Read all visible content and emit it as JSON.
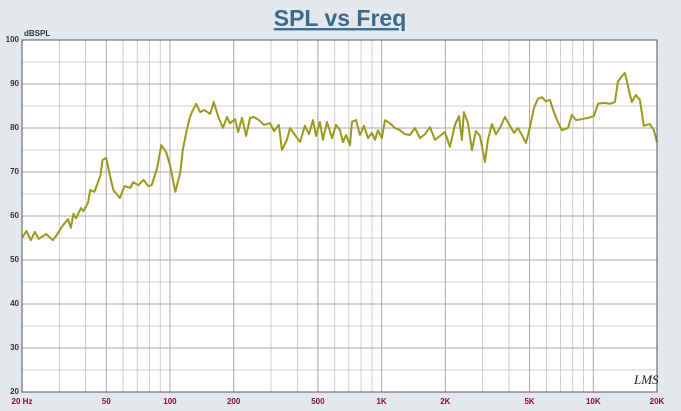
{
  "chart_data": {
    "type": "line",
    "title": "SPL vs Freq",
    "ylabel": "dBSPL",
    "watermark": "LMS",
    "x_scale": "log",
    "grid": true,
    "xlim": [
      20,
      20000
    ],
    "ylim": [
      20,
      100
    ],
    "xticks": [
      {
        "value": 20,
        "label": "20 Hz"
      },
      50,
      100,
      200,
      500,
      {
        "value": 1000,
        "label": "1K"
      },
      {
        "value": 2000,
        "label": "2K"
      },
      {
        "value": 5000,
        "label": "5K"
      },
      {
        "value": 10000,
        "label": "10K"
      },
      {
        "value": 20000,
        "label": "20K"
      }
    ],
    "x_minor_ticks": [
      30,
      40,
      60,
      70,
      80,
      90,
      300,
      400,
      600,
      700,
      800,
      900,
      3000,
      4000,
      6000,
      7000,
      8000,
      9000
    ],
    "yticks": [
      20,
      30,
      40,
      50,
      60,
      70,
      80,
      90,
      100
    ],
    "y_minor_ticks": [
      25,
      35,
      45,
      55,
      65,
      75,
      85,
      95
    ],
    "x": [
      20,
      21,
      22,
      23,
      24,
      26,
      28,
      29,
      31,
      33,
      34,
      35,
      36,
      38,
      39,
      41,
      42,
      44,
      47,
      48,
      50,
      52,
      54,
      58,
      61,
      65,
      67,
      71,
      75,
      79,
      82,
      87,
      91,
      96,
      100,
      106,
      112,
      115,
      120,
      124,
      127,
      133,
      139,
      145,
      155,
      161,
      170,
      178,
      186,
      192,
      203,
      210,
      219,
      229,
      239,
      249,
      263,
      278,
      297,
      310,
      327,
      338,
      357,
      369,
      390,
      412,
      434,
      454,
      474,
      490,
      511,
      528,
      552,
      583,
      609,
      636,
      657,
      679,
      709,
      724,
      757,
      790,
      825,
      862,
      900,
      930,
      961,
      1003,
      1037,
      1094,
      1156,
      1221,
      1289,
      1361,
      1437,
      1518,
      1602,
      1692,
      1786,
      1886,
      1991,
      2102,
      2220,
      2319,
      2395,
      2448,
      2558,
      2672,
      2790,
      2915,
      3078,
      3179,
      3321,
      3467,
      3622,
      3824,
      4039,
      4220,
      4406,
      4602,
      4806,
      5019,
      5242,
      5474,
      5718,
      5971,
      6236,
      6513,
      6802,
      7104,
      7591,
      7927,
      8279,
      8838,
      9434,
      10070,
      10520,
      11230,
      11980,
      12650,
      13070,
      13650,
      14100,
      14730,
      15210,
      15890,
      16590,
      17330,
      18500,
      19330,
      20000
    ],
    "series": [
      {
        "color": "#9c9a1c",
        "values": [
          55.0,
          56.6,
          54.5,
          56.4,
          54.8,
          55.9,
          54.5,
          55.5,
          57.7,
          59.3,
          57.3,
          60.5,
          59.5,
          61.8,
          61.1,
          63.0,
          65.9,
          65.5,
          69.3,
          72.7,
          73.2,
          69.3,
          65.9,
          64.1,
          66.8,
          66.4,
          67.7,
          67.0,
          68.2,
          66.8,
          67.0,
          70.9,
          76.1,
          74.5,
          71.6,
          65.5,
          70.0,
          75.0,
          79.5,
          82.3,
          83.6,
          85.5,
          83.6,
          84.1,
          83.2,
          85.9,
          82.3,
          80.0,
          82.5,
          81.1,
          82.0,
          79.1,
          82.3,
          78.2,
          82.3,
          82.5,
          81.8,
          80.7,
          81.1,
          79.3,
          80.7,
          75.0,
          77.3,
          80.0,
          78.4,
          76.8,
          80.5,
          78.6,
          81.8,
          78.2,
          81.4,
          77.3,
          81.4,
          77.7,
          80.7,
          79.5,
          76.8,
          78.4,
          76.1,
          81.4,
          81.8,
          78.4,
          80.5,
          77.7,
          78.9,
          77.3,
          79.5,
          77.7,
          81.8,
          81.1,
          80.0,
          79.5,
          78.6,
          78.4,
          80.0,
          77.7,
          78.6,
          80.2,
          77.3,
          78.2,
          79.1,
          75.7,
          80.7,
          82.7,
          77.3,
          83.6,
          81.1,
          75.0,
          79.3,
          78.2,
          72.3,
          77.3,
          80.9,
          78.6,
          80.0,
          82.5,
          80.5,
          78.9,
          80.0,
          78.4,
          76.6,
          80.2,
          84.5,
          86.6,
          87.0,
          86.1,
          86.4,
          83.6,
          81.4,
          79.5,
          80.0,
          83.0,
          81.8,
          82.0,
          82.3,
          82.7,
          85.5,
          85.7,
          85.5,
          85.9,
          90.5,
          91.8,
          92.5,
          88.6,
          85.9,
          87.5,
          86.4,
          80.5,
          80.9,
          79.5,
          76.8
        ]
      }
    ]
  }
}
